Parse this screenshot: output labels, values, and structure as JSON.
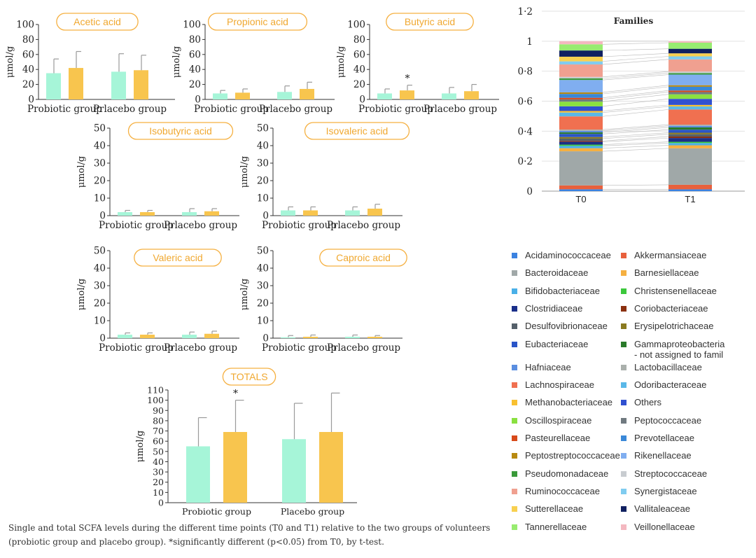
{
  "caption": "Single and total SCFA levels during the different time points (T0 and T1) relative to the two groups of volunteers (probiotic group and placebo group). *significantly different (p<0.05) from T0, by t-test.",
  "colors": {
    "t0": "#a6f5d8",
    "t1": "#f8c54e",
    "title_border": "#f5b041",
    "title_text": "#f0a830",
    "error": "#9a9a9a"
  },
  "chart_data": [
    {
      "id": "acetic",
      "type": "bar",
      "title": "Acetic acid",
      "ylabel": "μmol/g",
      "ylim": [
        0,
        100
      ],
      "yticks": [
        0,
        20,
        40,
        60,
        80,
        100
      ],
      "categories": [
        "Probiotic group",
        "Prlacebo group"
      ],
      "series": [
        {
          "values": [
            35,
            42
          ],
          "errors": [
            19,
            22
          ],
          "stars": [
            "",
            ""
          ]
        },
        {
          "values": [
            37,
            39
          ],
          "errors": [
            24,
            20
          ],
          "stars": [
            "",
            ""
          ]
        }
      ]
    },
    {
      "id": "propionic",
      "type": "bar",
      "title": "Propionic acid",
      "ylabel": "μmol/g",
      "ylim": [
        0,
        100
      ],
      "yticks": [
        0,
        20,
        40,
        60,
        80,
        100
      ],
      "categories": [
        "Probiotic group",
        "Prlacebo group"
      ],
      "series": [
        {
          "values": [
            8,
            9
          ],
          "errors": [
            4,
            5
          ],
          "stars": [
            "",
            ""
          ]
        },
        {
          "values": [
            10,
            14
          ],
          "errors": [
            8,
            9
          ],
          "stars": [
            "",
            ""
          ]
        }
      ]
    },
    {
      "id": "butyric",
      "type": "bar",
      "title": "Butyric acid",
      "ylabel": "μmol/g",
      "ylim": [
        0,
        100
      ],
      "yticks": [
        0,
        20,
        40,
        60,
        80,
        100
      ],
      "categories": [
        "Probiotic group",
        "Prlacebo group"
      ],
      "series": [
        {
          "values": [
            8,
            12
          ],
          "errors": [
            6,
            7
          ],
          "stars": [
            "",
            "*"
          ]
        },
        {
          "values": [
            8,
            11
          ],
          "errors": [
            8,
            9
          ],
          "stars": [
            "",
            ""
          ]
        }
      ]
    },
    {
      "id": "isobutyric",
      "type": "bar",
      "title": "Isobutyric acid",
      "ylabel": "μmol/g",
      "ylim": [
        0,
        50
      ],
      "yticks": [
        0,
        10,
        20,
        30,
        40,
        50
      ],
      "categories": [
        "Probiotic group",
        "Prlacebo group"
      ],
      "series": [
        {
          "values": [
            2,
            2
          ],
          "errors": [
            1,
            1
          ],
          "stars": [
            "",
            ""
          ]
        },
        {
          "values": [
            2,
            2.5
          ],
          "errors": [
            2,
            1.5
          ],
          "stars": [
            "",
            ""
          ]
        }
      ]
    },
    {
      "id": "isovaleric",
      "type": "bar",
      "title": "Isovaleric acid",
      "ylabel": "μmol/g",
      "ylim": [
        0,
        50
      ],
      "yticks": [
        0,
        10,
        20,
        30,
        40,
        50
      ],
      "categories": [
        "Probiotic group",
        "Prlacebo group"
      ],
      "series": [
        {
          "values": [
            3,
            3
          ],
          "errors": [
            2,
            2
          ],
          "stars": [
            "",
            ""
          ]
        },
        {
          "values": [
            3,
            4
          ],
          "errors": [
            2,
            2.5
          ],
          "stars": [
            "",
            ""
          ]
        }
      ]
    },
    {
      "id": "valeric",
      "type": "bar",
      "title": "Valeric acid",
      "ylabel": "μmol/g",
      "ylim": [
        0,
        50
      ],
      "yticks": [
        0,
        10,
        20,
        30,
        40,
        50
      ],
      "categories": [
        "Probiotic group",
        "Prlacebo group"
      ],
      "series": [
        {
          "values": [
            2,
            2
          ],
          "errors": [
            1,
            1
          ],
          "stars": [
            "",
            ""
          ]
        },
        {
          "values": [
            2,
            2.5
          ],
          "errors": [
            1.5,
            1.5
          ],
          "stars": [
            "",
            ""
          ]
        }
      ]
    },
    {
      "id": "caproic",
      "type": "bar",
      "title": "Caproic acid",
      "ylabel": "μmol/g",
      "ylim": [
        0,
        50
      ],
      "yticks": [
        0,
        10,
        20,
        30,
        40,
        50
      ],
      "categories": [
        "Probiotic group",
        "Prlacebo group"
      ],
      "series": [
        {
          "values": [
            0.5,
            0.8
          ],
          "errors": [
            1,
            1
          ],
          "stars": [
            "",
            ""
          ]
        },
        {
          "values": [
            0.8,
            0.8
          ],
          "errors": [
            1,
            0.7
          ],
          "stars": [
            "",
            ""
          ]
        }
      ]
    },
    {
      "id": "totals",
      "type": "bar",
      "title": "TOTALS",
      "ylabel": "μmol/g",
      "ylim": [
        0,
        110
      ],
      "yticks": [
        0,
        10,
        20,
        30,
        40,
        50,
        60,
        70,
        80,
        90,
        100,
        110
      ],
      "categories": [
        "Probiotic group",
        "Placebo group"
      ],
      "series": [
        {
          "values": [
            55,
            69
          ],
          "errors": [
            28,
            31
          ],
          "stars": [
            "",
            "*"
          ]
        },
        {
          "values": [
            62,
            69
          ],
          "errors": [
            35,
            38
          ],
          "stars": [
            "",
            ""
          ]
        }
      ]
    },
    {
      "id": "families",
      "type": "stacked-bar",
      "title": "Families",
      "ylim": [
        0,
        1.2
      ],
      "yticks": [
        "0",
        "0·2",
        "0·4",
        "0·6",
        "0·8",
        "1",
        "1·2"
      ],
      "categories": [
        "T0",
        "T1"
      ],
      "stacks": [
        [
          [
            "#3b82e0",
            0.012
          ],
          [
            "#e8603c",
            0.025
          ],
          [
            "#a0a8a8",
            0.22
          ],
          [
            "#f5b041",
            0.02
          ],
          [
            "#4ab0e8",
            0.015
          ],
          [
            "#3cc83c",
            0.008
          ],
          [
            "#1a2f8a",
            0.018
          ],
          [
            "#8b3010",
            0.006
          ],
          [
            "#55606a",
            0.015
          ],
          [
            "#8a7a20",
            0.01
          ],
          [
            "#2a55c8",
            0.02
          ],
          [
            "#2a7a2a",
            0.01
          ],
          [
            "#5a8ee0",
            0.01
          ],
          [
            "#aab0ac",
            0.008
          ],
          [
            "#f07050",
            0.085
          ],
          [
            "#5ab8e8",
            0.025
          ],
          [
            "#f8c030",
            0.01
          ],
          [
            "#3050d0",
            0.03
          ],
          [
            "#8ae040",
            0.03
          ],
          [
            "#707a80",
            0.015
          ],
          [
            "#d84a1a",
            0.01
          ],
          [
            "#3a88d8",
            0.025
          ],
          [
            "#b88a10",
            0.01
          ],
          [
            "#80aef0",
            0.08
          ],
          [
            "#3a9a3a",
            0.01
          ],
          [
            "#c8ccd0",
            0.01
          ],
          [
            "#f0a090",
            0.08
          ],
          [
            "#80ccf0",
            0.02
          ],
          [
            "#f8d050",
            0.03
          ],
          [
            "#102060",
            0.04
          ],
          [
            "#98ec70",
            0.04
          ],
          [
            "#f4b8c0",
            0.02
          ]
        ],
        [
          [
            "#3b82e0",
            0.012
          ],
          [
            "#e8603c",
            0.03
          ],
          [
            "#a0a8a8",
            0.24
          ],
          [
            "#f5b041",
            0.02
          ],
          [
            "#4ab0e8",
            0.015
          ],
          [
            "#3cc83c",
            0.008
          ],
          [
            "#1a2f8a",
            0.025
          ],
          [
            "#8b3010",
            0.01
          ],
          [
            "#55606a",
            0.015
          ],
          [
            "#8a7a20",
            0.01
          ],
          [
            "#2a55c8",
            0.02
          ],
          [
            "#2a7a2a",
            0.015
          ],
          [
            "#5a8ee0",
            0.01
          ],
          [
            "#aab0ac",
            0.008
          ],
          [
            "#f07050",
            0.1
          ],
          [
            "#5ab8e8",
            0.02
          ],
          [
            "#f8c030",
            0.01
          ],
          [
            "#3050d0",
            0.04
          ],
          [
            "#8ae040",
            0.03
          ],
          [
            "#707a80",
            0.015
          ],
          [
            "#d84a1a",
            0.01
          ],
          [
            "#3a88d8",
            0.025
          ],
          [
            "#b88a10",
            0.01
          ],
          [
            "#80aef0",
            0.07
          ],
          [
            "#3a9a3a",
            0.01
          ],
          [
            "#c8ccd0",
            0.01
          ],
          [
            "#f0a090",
            0.08
          ],
          [
            "#80ccf0",
            0.02
          ],
          [
            "#f8d050",
            0.02
          ],
          [
            "#102060",
            0.03
          ],
          [
            "#98ec70",
            0.04
          ],
          [
            "#f4b8c0",
            0.01
          ]
        ]
      ]
    }
  ],
  "legend": [
    {
      "label": "Acidaminococcaceae",
      "color": "#3b82e0"
    },
    {
      "label": "Akkermansiaceae",
      "color": "#e8603c"
    },
    {
      "label": "Bacteroidaceae",
      "color": "#a0a8a8"
    },
    {
      "label": "Barnesiellaceae",
      "color": "#f5b041"
    },
    {
      "label": "Bifidobacteriaceae",
      "color": "#4ab0e8"
    },
    {
      "label": "Christensenellaceae",
      "color": "#3cc83c"
    },
    {
      "label": "Clostridiaceae",
      "color": "#1a2f8a"
    },
    {
      "label": "Coriobacteriaceae",
      "color": "#8b3010"
    },
    {
      "label": "Desulfovibrionaceae",
      "color": "#55606a"
    },
    {
      "label": "Erysipelotrichaceae",
      "color": "#8a7a20"
    },
    {
      "label": "Eubacteriaceae",
      "color": "#2a55c8"
    },
    {
      "label": "Gammaproteobacteria\n- not assigned to famil",
      "color": "#2a7a2a"
    },
    {
      "label": "Hafniaceae",
      "color": "#5a8ee0"
    },
    {
      "label": "Lactobacillaceae",
      "color": "#aab0ac"
    },
    {
      "label": "Lachnospiraceae",
      "color": "#f07050"
    },
    {
      "label": "Odoribacteraceae",
      "color": "#5ab8e8"
    },
    {
      "label": "Methanobacteriaceae",
      "color": "#f8c030"
    },
    {
      "label": "Others",
      "color": "#3050d0"
    },
    {
      "label": "Oscillospiraceae",
      "color": "#8ae040"
    },
    {
      "label": "Peptococcaceae",
      "color": "#707a80"
    },
    {
      "label": "Pasteurellaceae",
      "color": "#d84a1a"
    },
    {
      "label": "Prevotellaceae",
      "color": "#3a88d8"
    },
    {
      "label": "Peptostreptococcaceae",
      "color": "#b88a10"
    },
    {
      "label": "Rikenellaceae",
      "color": "#80aef0"
    },
    {
      "label": "Pseudomonadaceae",
      "color": "#3a9a3a"
    },
    {
      "label": "Streptococcaceae",
      "color": "#c8ccd0"
    },
    {
      "label": "Ruminococcaceae",
      "color": "#f0a090"
    },
    {
      "label": "Synergistaceae",
      "color": "#80ccf0"
    },
    {
      "label": "Sutterellaceae",
      "color": "#f8d050"
    },
    {
      "label": "Vallitaleaceae",
      "color": "#102060"
    },
    {
      "label": "Tannerellaceae",
      "color": "#98ec70"
    },
    {
      "label": "Veillonellaceae",
      "color": "#f4b8c0"
    }
  ]
}
